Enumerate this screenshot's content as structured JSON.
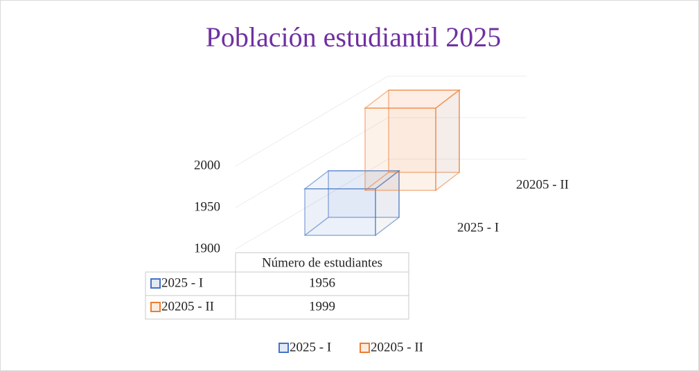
{
  "chart_data": {
    "type": "bar3d",
    "title": "Población estudiantil 2025",
    "categories": [
      "Número de estudiantes"
    ],
    "series": [
      {
        "name": "2025 - I",
        "color": "#4472c4",
        "values": [
          1956
        ]
      },
      {
        "name": "20205 - II",
        "color": "#ed7d31",
        "values": [
          1999
        ]
      }
    ],
    "ylim": [
      1900,
      2000
    ],
    "yticks": [
      1900,
      1950,
      2000
    ],
    "grid": true,
    "data_table": true,
    "legend": "bottom"
  }
}
